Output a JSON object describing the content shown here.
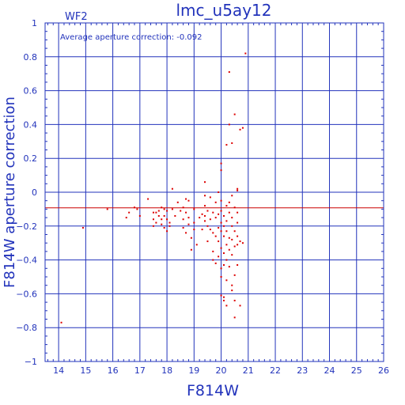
{
  "chart_data": {
    "type": "scatter",
    "title": "lmc_u5ay12",
    "subtitle": "WF2",
    "xlabel": "F814W",
    "ylabel": "F814W aperture correction",
    "annotation": "Average aperture correction: -0.092",
    "xlim": [
      13.5,
      26
    ],
    "ylim": [
      -1,
      1
    ],
    "x_ticks": [
      "14",
      "15",
      "16",
      "17",
      "18",
      "19",
      "20",
      "21",
      "22",
      "23",
      "24",
      "25",
      "26"
    ],
    "y_ticks": [
      "1",
      "0.8",
      "0.6",
      "0.4",
      "0.2",
      "0",
      "−0.2",
      "−0.4",
      "−0.6",
      "−0.8",
      "−1"
    ],
    "grid": true,
    "reference_line": {
      "y": -0.092,
      "label": "average"
    },
    "colors": {
      "axis": "#2233bb",
      "points": "#dd0000",
      "reference": "#cc0000"
    },
    "series": [
      {
        "points": [
          [
            14.1,
            -0.77
          ],
          [
            14.9,
            -0.21
          ],
          [
            15.8,
            -0.1
          ],
          [
            16.5,
            -0.15
          ],
          [
            16.6,
            -0.12
          ],
          [
            16.8,
            -0.09
          ],
          [
            16.9,
            -0.1
          ],
          [
            17.0,
            -0.14
          ],
          [
            17.3,
            -0.04
          ],
          [
            17.5,
            -0.12
          ],
          [
            17.5,
            -0.16
          ],
          [
            17.5,
            -0.2
          ],
          [
            17.6,
            -0.12
          ],
          [
            17.6,
            -0.18
          ],
          [
            17.7,
            -0.11
          ],
          [
            17.7,
            -0.14
          ],
          [
            17.8,
            -0.09
          ],
          [
            17.8,
            -0.16
          ],
          [
            17.8,
            -0.19
          ],
          [
            17.9,
            -0.1
          ],
          [
            17.9,
            -0.14
          ],
          [
            17.9,
            -0.21
          ],
          [
            18.0,
            -0.11
          ],
          [
            18.0,
            -0.16
          ],
          [
            18.0,
            -0.23
          ],
          [
            18.1,
            -0.18
          ],
          [
            18.1,
            -0.2
          ],
          [
            18.2,
            0.02
          ],
          [
            18.2,
            -0.1
          ],
          [
            18.3,
            -0.14
          ],
          [
            18.4,
            -0.06
          ],
          [
            18.5,
            -0.11
          ],
          [
            18.6,
            -0.09
          ],
          [
            18.6,
            -0.16
          ],
          [
            18.6,
            -0.21
          ],
          [
            18.7,
            -0.04
          ],
          [
            18.7,
            -0.12
          ],
          [
            18.7,
            -0.24
          ],
          [
            18.8,
            -0.05
          ],
          [
            18.8,
            -0.15
          ],
          [
            18.8,
            -0.19
          ],
          [
            18.9,
            -0.34
          ],
          [
            18.9,
            -0.27
          ],
          [
            19.0,
            -0.1
          ],
          [
            19.0,
            -0.18
          ],
          [
            19.0,
            -0.22
          ],
          [
            19.1,
            -0.31
          ],
          [
            19.2,
            -0.15
          ],
          [
            19.3,
            -0.13
          ],
          [
            19.3,
            -0.22
          ],
          [
            19.4,
            0.06
          ],
          [
            19.4,
            -0.02
          ],
          [
            19.4,
            -0.08
          ],
          [
            19.4,
            -0.14
          ],
          [
            19.4,
            -0.17
          ],
          [
            19.5,
            -0.11
          ],
          [
            19.5,
            -0.2
          ],
          [
            19.5,
            -0.29
          ],
          [
            19.6,
            -0.03
          ],
          [
            19.6,
            -0.16
          ],
          [
            19.6,
            -0.22
          ],
          [
            19.7,
            -0.12
          ],
          [
            19.7,
            -0.24
          ],
          [
            19.7,
            -0.35
          ],
          [
            19.7,
            -0.4
          ],
          [
            19.8,
            -0.06
          ],
          [
            19.8,
            -0.15
          ],
          [
            19.8,
            -0.26
          ],
          [
            19.8,
            -0.42
          ],
          [
            19.9,
            0.0
          ],
          [
            19.9,
            -0.13
          ],
          [
            19.9,
            -0.21
          ],
          [
            19.9,
            -0.29
          ],
          [
            19.9,
            -0.38
          ],
          [
            20.0,
            0.17
          ],
          [
            20.0,
            0.13
          ],
          [
            20.0,
            -0.05
          ],
          [
            20.0,
            -0.11
          ],
          [
            20.0,
            -0.18
          ],
          [
            20.0,
            -0.23
          ],
          [
            20.0,
            -0.33
          ],
          [
            20.0,
            -0.45
          ],
          [
            20.0,
            -0.5
          ],
          [
            20.0,
            -0.61
          ],
          [
            20.1,
            -0.62
          ],
          [
            20.1,
            -0.14
          ],
          [
            20.1,
            -0.2
          ],
          [
            20.1,
            -0.26
          ],
          [
            20.1,
            -0.36
          ],
          [
            20.1,
            -0.43
          ],
          [
            20.1,
            -0.64
          ],
          [
            20.2,
            0.28
          ],
          [
            20.2,
            -0.08
          ],
          [
            20.2,
            -0.17
          ],
          [
            20.2,
            -0.23
          ],
          [
            20.2,
            -0.31
          ],
          [
            20.2,
            -0.4
          ],
          [
            20.2,
            -0.52
          ],
          [
            20.2,
            -0.67
          ],
          [
            20.3,
            0.71
          ],
          [
            20.3,
            0.4
          ],
          [
            20.3,
            -0.06
          ],
          [
            20.3,
            -0.12
          ],
          [
            20.3,
            -0.27
          ],
          [
            20.3,
            -0.34
          ],
          [
            20.3,
            -0.44
          ],
          [
            20.4,
            0.29
          ],
          [
            20.4,
            -0.02
          ],
          [
            20.4,
            -0.15
          ],
          [
            20.4,
            -0.2
          ],
          [
            20.4,
            -0.28
          ],
          [
            20.4,
            -0.37
          ],
          [
            20.4,
            -0.55
          ],
          [
            20.4,
            -0.58
          ],
          [
            20.5,
            0.46
          ],
          [
            20.5,
            -0.09
          ],
          [
            20.5,
            -0.23
          ],
          [
            20.5,
            -0.32
          ],
          [
            20.5,
            -0.49
          ],
          [
            20.5,
            -0.64
          ],
          [
            20.5,
            -0.74
          ],
          [
            20.6,
            0.01
          ],
          [
            20.6,
            0.02
          ],
          [
            20.6,
            -0.12
          ],
          [
            20.6,
            -0.18
          ],
          [
            20.6,
            -0.26
          ],
          [
            20.6,
            -0.31
          ],
          [
            20.6,
            -0.43
          ],
          [
            20.7,
            -0.67
          ],
          [
            20.7,
            0.37
          ],
          [
            20.7,
            -0.29
          ],
          [
            20.8,
            0.38
          ],
          [
            20.8,
            -0.3
          ],
          [
            20.9,
            0.82
          ]
        ]
      }
    ]
  }
}
